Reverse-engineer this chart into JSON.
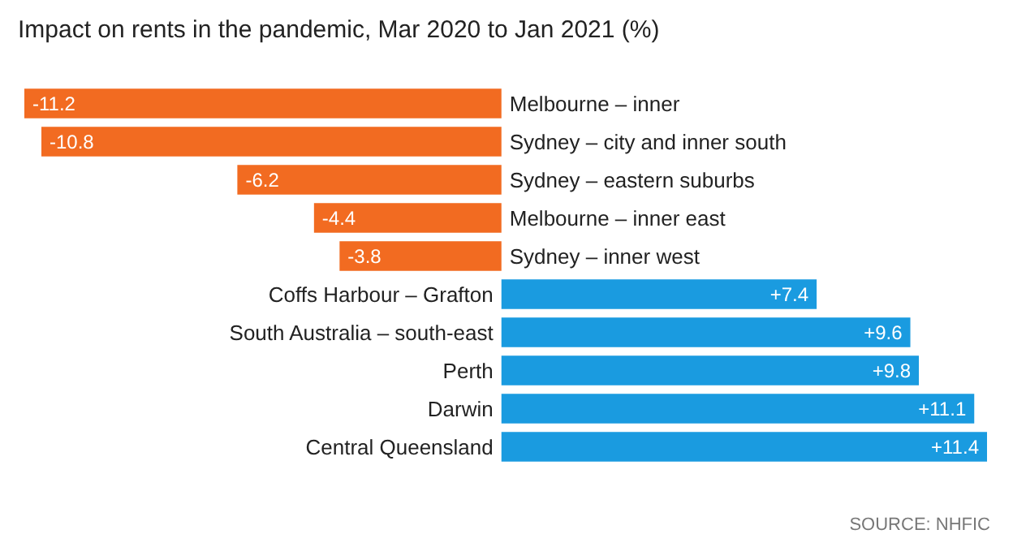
{
  "chart_data": {
    "type": "bar",
    "orientation": "horizontal",
    "title": "Impact on rents in the pandemic, Mar 2020 to Jan 2021 (%)",
    "categories": [
      "Melbourne – inner",
      "Sydney – city and inner south",
      "Sydney – eastern suburbs",
      "Melbourne – inner east",
      "Sydney – inner west",
      "Coffs Harbour – Grafton",
      "South Australia – south-east",
      "Perth",
      "Darwin",
      "Central Queensland"
    ],
    "values": [
      -11.2,
      -10.8,
      -6.2,
      -4.4,
      -3.8,
      7.4,
      9.6,
      9.8,
      11.1,
      11.4
    ],
    "value_labels": [
      "-11.2",
      "-10.8",
      "-6.2",
      "-4.4",
      "-3.8",
      "+7.4",
      "+9.6",
      "+9.8",
      "+11.1",
      "+11.4"
    ],
    "colors": [
      "#f26b21",
      "#f26b21",
      "#f26b21",
      "#f26b21",
      "#f26b21",
      "#1a9be0",
      "#1a9be0",
      "#1a9be0",
      "#1a9be0",
      "#1a9be0"
    ],
    "annotations": [
      "SOURCE: NHFIC"
    ]
  }
}
